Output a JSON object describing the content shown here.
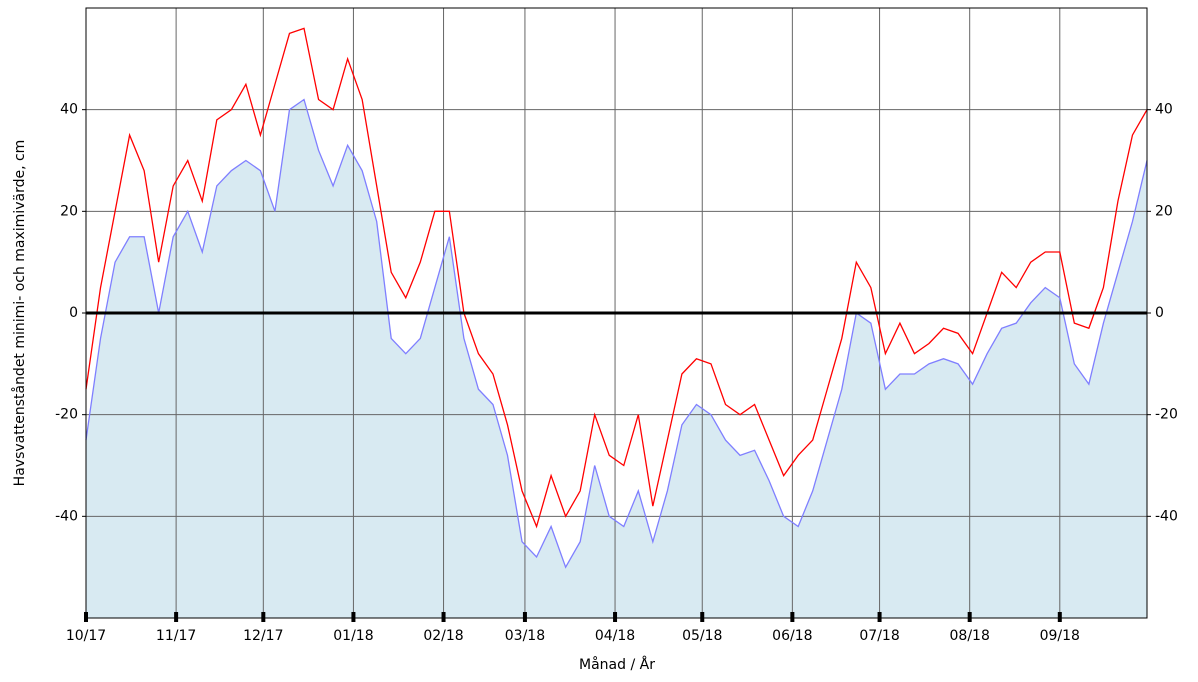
{
  "chart_data": {
    "type": "line",
    "x_label": "Månad / År",
    "y_label": "Havsvattenståndet minimi- och maximivärde, cm",
    "x": [
      0,
      5,
      10,
      15,
      20,
      25,
      30,
      35,
      40,
      45,
      50,
      55,
      60,
      65,
      70,
      75,
      80,
      85,
      90,
      95,
      100,
      105,
      110,
      115,
      120,
      125,
      130,
      135,
      140,
      145,
      150,
      155,
      160,
      165,
      170,
      175,
      180,
      185,
      190,
      195,
      200,
      205,
      210,
      215,
      220,
      225,
      230,
      235,
      240,
      245,
      250,
      255,
      260,
      265,
      270,
      275,
      280,
      285,
      290,
      295,
      300,
      305,
      310,
      315,
      320,
      325,
      330,
      335,
      340,
      345,
      350,
      355,
      360,
      365
    ],
    "xlim": [
      0,
      365
    ],
    "xticks": [
      {
        "value": 0,
        "label": "10/17"
      },
      {
        "value": 31,
        "label": "11/17"
      },
      {
        "value": 61,
        "label": "12/17"
      },
      {
        "value": 92,
        "label": "01/18"
      },
      {
        "value": 123,
        "label": "02/18"
      },
      {
        "value": 151,
        "label": "03/18"
      },
      {
        "value": 182,
        "label": "04/18"
      },
      {
        "value": 212,
        "label": "05/18"
      },
      {
        "value": 243,
        "label": "06/18"
      },
      {
        "value": 273,
        "label": "07/18"
      },
      {
        "value": 304,
        "label": "08/18"
      },
      {
        "value": 335,
        "label": "09/18"
      }
    ],
    "ylim": [
      -60,
      60
    ],
    "yticks": [
      -40,
      -20,
      0,
      20,
      40
    ],
    "grid": true,
    "fill_color": "#d8eaf2",
    "series": [
      {
        "name": "minimivärde",
        "color": "#7f7fff",
        "fill": true,
        "values": [
          -25,
          -5,
          10,
          15,
          15,
          0,
          15,
          20,
          12,
          25,
          28,
          30,
          28,
          20,
          40,
          42,
          32,
          25,
          33,
          28,
          18,
          -5,
          -8,
          -5,
          5,
          15,
          -5,
          -15,
          -18,
          -28,
          -45,
          -48,
          -42,
          -50,
          -45,
          -30,
          -40,
          -42,
          -35,
          -45,
          -35,
          -22,
          -18,
          -20,
          -25,
          -28,
          -27,
          -33,
          -40,
          -42,
          -35,
          -25,
          -15,
          0,
          -2,
          -15,
          -12,
          -12,
          -10,
          -9,
          -10,
          -14,
          -8,
          -3,
          -2,
          2,
          5,
          3,
          -10,
          -14,
          -2,
          8,
          18,
          30
        ]
      },
      {
        "name": "maximivärde",
        "color": "#ff0000",
        "values": [
          -15,
          5,
          20,
          35,
          28,
          10,
          25,
          30,
          22,
          38,
          40,
          45,
          35,
          45,
          55,
          56,
          42,
          40,
          50,
          42,
          25,
          8,
          3,
          10,
          20,
          20,
          0,
          -8,
          -12,
          -22,
          -35,
          -42,
          -32,
          -40,
          -35,
          -20,
          -28,
          -30,
          -20,
          -38,
          -25,
          -12,
          -9,
          -10,
          -18,
          -20,
          -18,
          -25,
          -32,
          -28,
          -25,
          -15,
          -5,
          10,
          5,
          -8,
          -2,
          -8,
          -6,
          -3,
          -4,
          -8,
          0,
          8,
          5,
          10,
          12,
          12,
          -2,
          -3,
          5,
          22,
          35,
          40
        ]
      }
    ]
  }
}
